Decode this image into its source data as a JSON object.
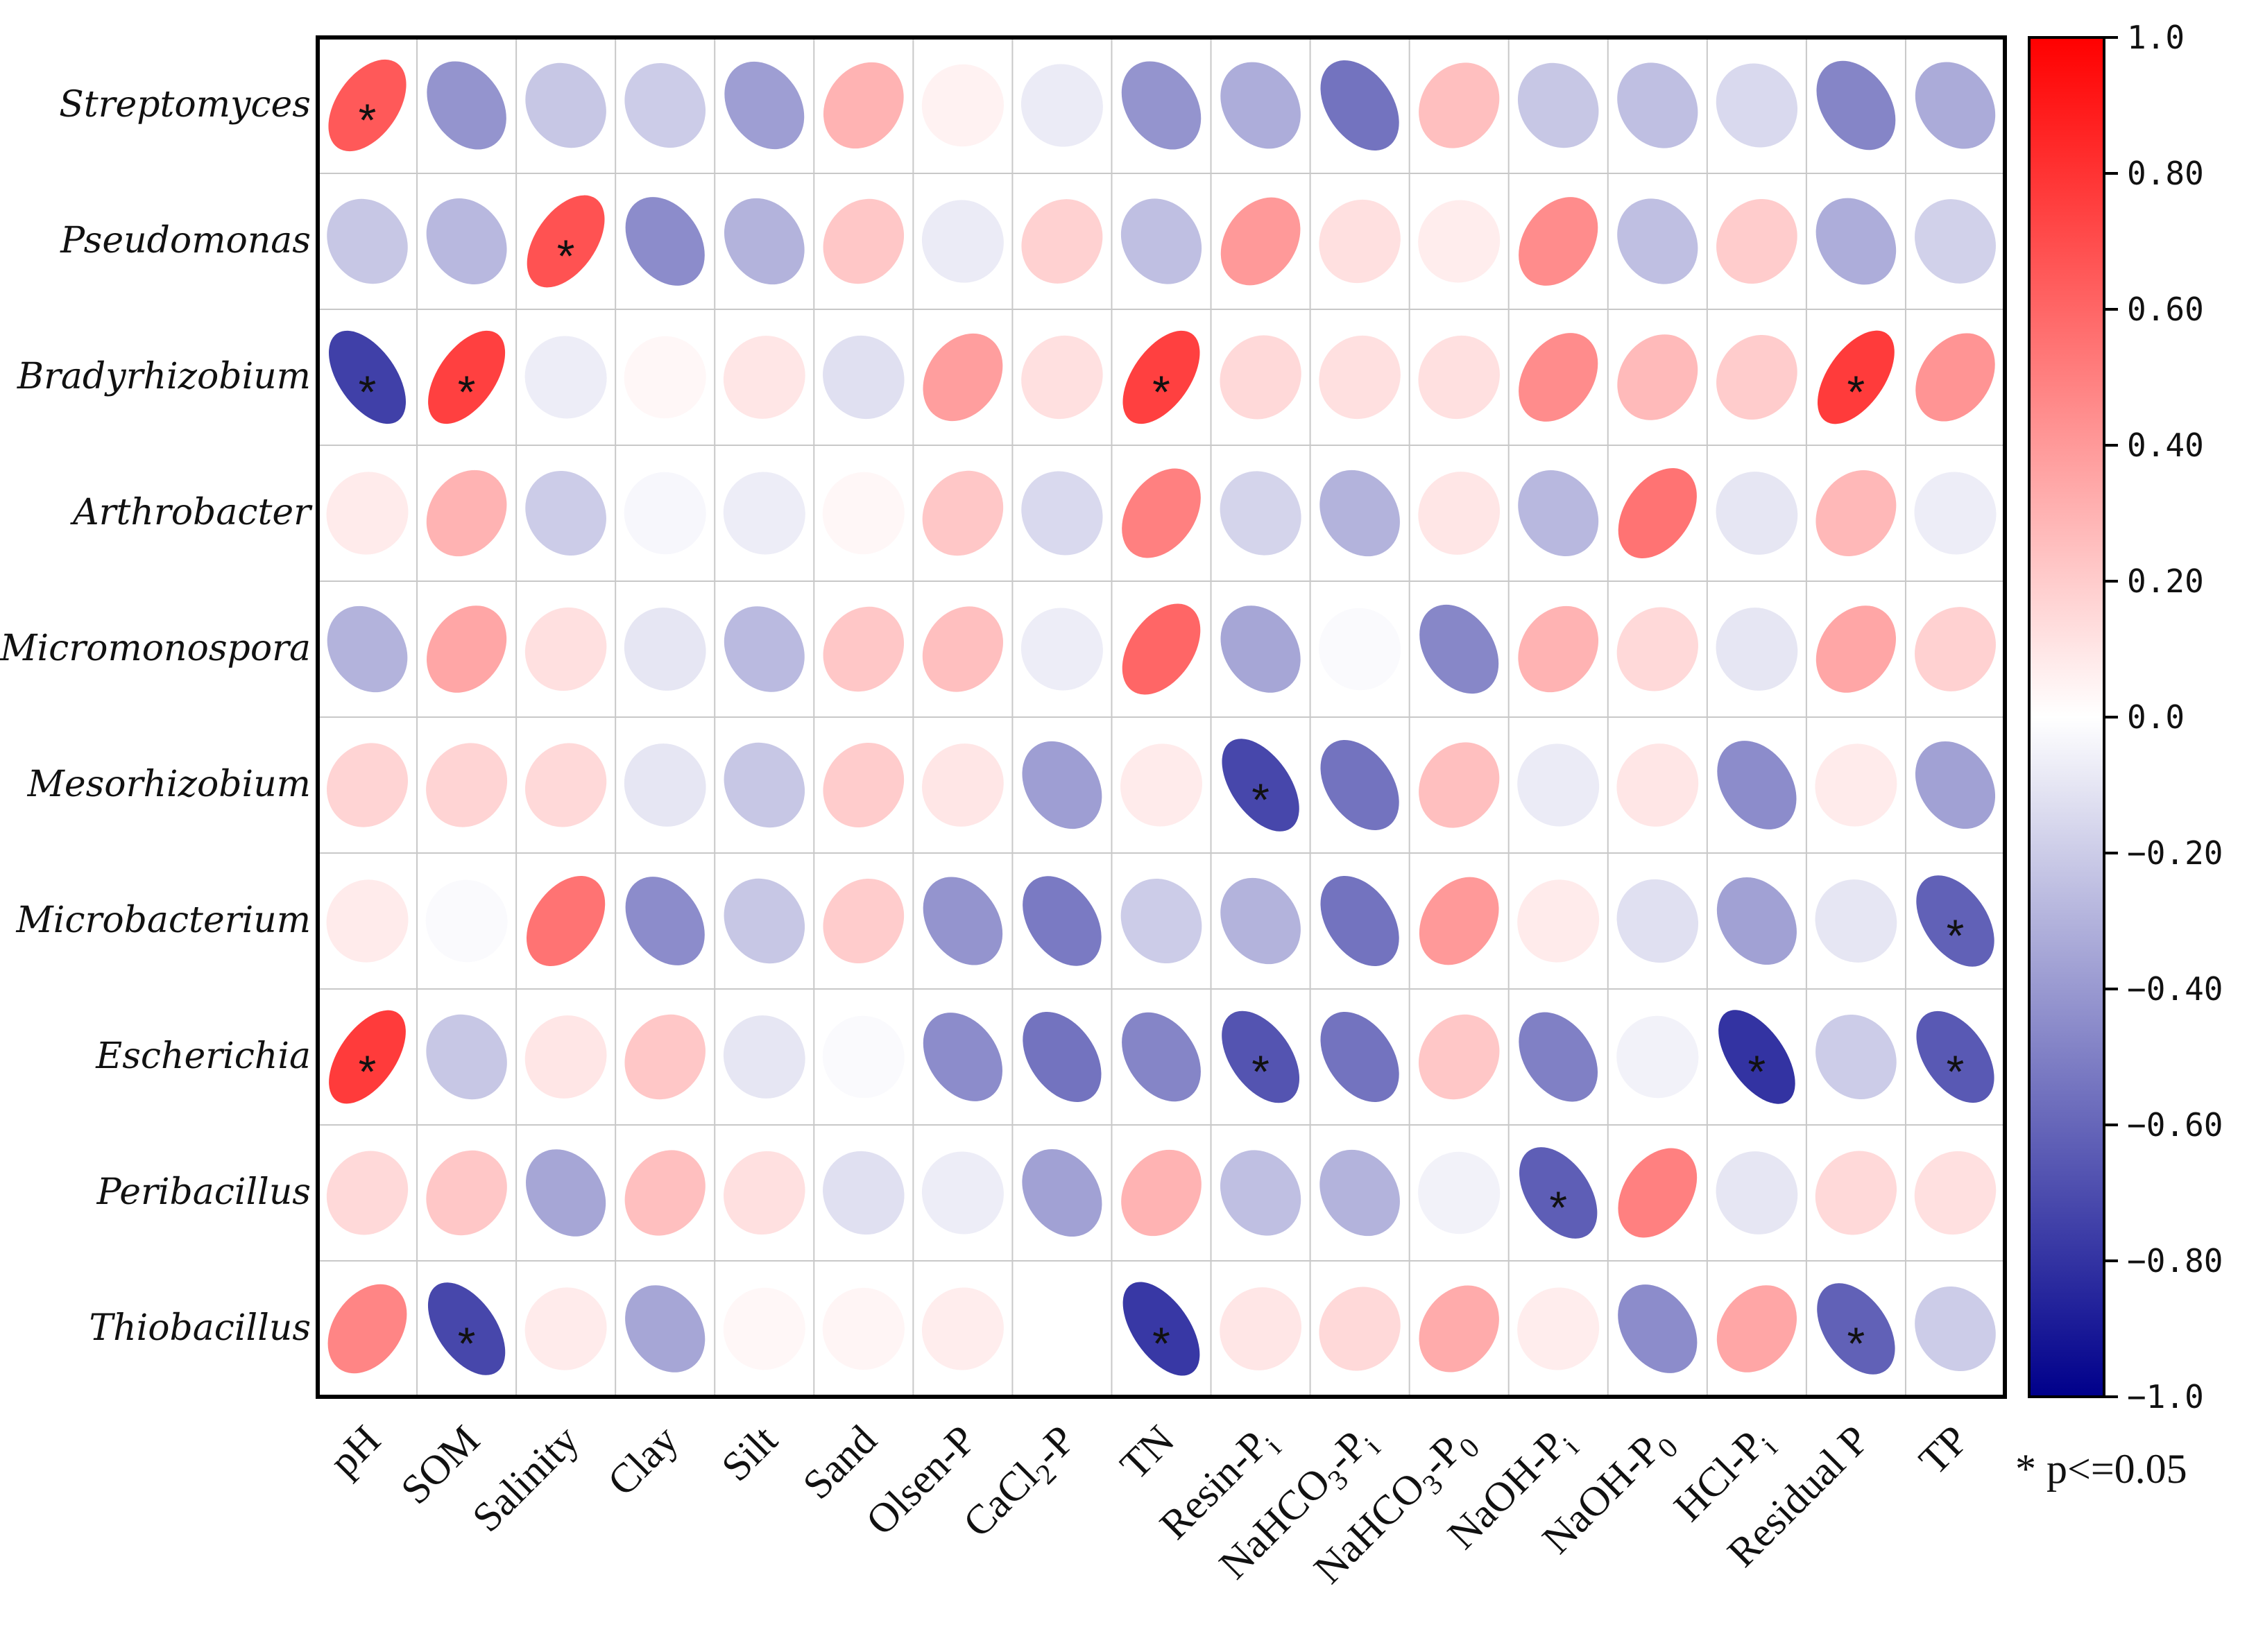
{
  "chart_data": {
    "type": "heatmap",
    "style": "ellipse correlation matrix",
    "rows": [
      "Streptomyces",
      "Pseudomonas",
      "Bradyrhizobium",
      "Arthrobacter",
      "Micromonospora",
      "Mesorhizobium",
      "Microbacterium",
      "Escherichia",
      "Peribacillus",
      "Thiobacillus"
    ],
    "columns": [
      {
        "name": "pH",
        "base": "pH",
        "sub": ""
      },
      {
        "name": "SOM",
        "base": "SOM",
        "sub": ""
      },
      {
        "name": "Salinity",
        "base": "Salinity",
        "sub": ""
      },
      {
        "name": "Clay",
        "base": "Clay",
        "sub": ""
      },
      {
        "name": "Silt",
        "base": "Silt",
        "sub": ""
      },
      {
        "name": "Sand",
        "base": "Sand",
        "sub": ""
      },
      {
        "name": "Olsen-P",
        "base": "Olsen-P",
        "sub": ""
      },
      {
        "name": "CaCl2-P",
        "base": "CaCl",
        "sub": "2",
        "tail": "-P"
      },
      {
        "name": "TN",
        "base": "TN",
        "sub": ""
      },
      {
        "name": "Resin-Pi",
        "base": "Resin-P",
        "sub": "i"
      },
      {
        "name": "NaHCO3-Pi",
        "base": "NaHCO",
        "sub": "3",
        "tail": "-P",
        "sub2": "i"
      },
      {
        "name": "NaHCO3-P0",
        "base": "NaHCO",
        "sub": "3",
        "tail": "-P",
        "sub2": "0"
      },
      {
        "name": "NaOH-Pi",
        "base": "NaOH-P",
        "sub": "i"
      },
      {
        "name": "NaOH-P0",
        "base": "NaOH-P",
        "sub": "0"
      },
      {
        "name": "HCl-Pi",
        "base": "HCl-P",
        "sub": "i"
      },
      {
        "name": "Residual P",
        "base": "Residual P",
        "sub": ""
      },
      {
        "name": "TP",
        "base": "TP",
        "sub": ""
      }
    ],
    "values": [
      [
        0.65,
        -0.42,
        -0.22,
        -0.2,
        -0.38,
        0.3,
        0.05,
        -0.08,
        -0.42,
        -0.32,
        -0.55,
        0.25,
        -0.22,
        -0.25,
        -0.15,
        -0.48,
        -0.33
      ],
      [
        -0.22,
        -0.28,
        0.68,
        -0.45,
        -0.3,
        0.22,
        -0.08,
        0.18,
        -0.25,
        0.4,
        0.12,
        0.07,
        0.45,
        -0.25,
        0.2,
        -0.32,
        -0.18
      ],
      [
        -0.75,
        0.75,
        -0.07,
        0.03,
        0.1,
        -0.12,
        0.38,
        0.12,
        0.75,
        0.15,
        0.12,
        0.12,
        0.45,
        0.27,
        0.2,
        0.77,
        0.42
      ],
      [
        0.08,
        0.3,
        -0.2,
        -0.03,
        -0.07,
        0.03,
        0.22,
        -0.15,
        0.5,
        -0.17,
        -0.3,
        0.1,
        -0.28,
        0.55,
        -0.1,
        0.28,
        -0.07
      ],
      [
        -0.3,
        0.35,
        0.12,
        -0.1,
        -0.27,
        0.22,
        0.25,
        -0.07,
        0.6,
        -0.35,
        -0.02,
        -0.47,
        0.3,
        0.15,
        -0.1,
        0.35,
        0.18
      ],
      [
        0.17,
        0.17,
        0.15,
        -0.1,
        -0.22,
        0.2,
        0.1,
        -0.38,
        0.08,
        -0.72,
        -0.55,
        0.25,
        -0.08,
        0.1,
        -0.45,
        0.08,
        -0.37
      ],
      [
        0.08,
        -0.02,
        0.55,
        -0.45,
        -0.22,
        0.2,
        -0.42,
        -0.52,
        -0.2,
        -0.3,
        -0.55,
        0.4,
        0.08,
        -0.12,
        -0.37,
        -0.1,
        -0.62
      ],
      [
        0.77,
        -0.22,
        0.1,
        0.22,
        -0.1,
        -0.02,
        -0.45,
        -0.55,
        -0.48,
        -0.67,
        -0.55,
        0.22,
        -0.5,
        -0.05,
        -0.8,
        -0.2,
        -0.65
      ],
      [
        0.15,
        0.22,
        -0.35,
        0.25,
        0.12,
        -0.12,
        -0.07,
        -0.37,
        0.3,
        -0.25,
        -0.3,
        -0.05,
        -0.63,
        0.5,
        -0.1,
        0.15,
        0.12
      ],
      [
        0.48,
        -0.72,
        0.08,
        -0.35,
        0.03,
        0.04,
        0.07,
        0.0,
        -0.78,
        0.1,
        0.15,
        0.33,
        0.07,
        -0.45,
        0.35,
        -0.62,
        -0.2
      ]
    ],
    "significant": [
      [
        0,
        0
      ],
      [
        1,
        2
      ],
      [
        2,
        0
      ],
      [
        2,
        1
      ],
      [
        2,
        8
      ],
      [
        2,
        15
      ],
      [
        5,
        9
      ],
      [
        6,
        16
      ],
      [
        7,
        0
      ],
      [
        7,
        9
      ],
      [
        7,
        14
      ],
      [
        7,
        16
      ],
      [
        8,
        12
      ],
      [
        9,
        1
      ],
      [
        9,
        8
      ],
      [
        9,
        15
      ]
    ],
    "colorbar": {
      "min": -1.0,
      "max": 1.0,
      "ticks": [
        1.0,
        0.8,
        0.6,
        0.4,
        0.2,
        0.0,
        -0.2,
        -0.4,
        -0.6,
        -0.8,
        -1.0
      ],
      "tick_labels": [
        "1.0",
        "0.80",
        "0.60",
        "0.40",
        "0.20",
        "0.0",
        "−0.20",
        "−0.40",
        "−0.60",
        "−0.80",
        "−1.0"
      ],
      "colors": [
        "#00008b",
        "#ffffff",
        "#ff0000"
      ]
    },
    "significance_note": "* p<=0.05",
    "star_symbol": "*"
  }
}
